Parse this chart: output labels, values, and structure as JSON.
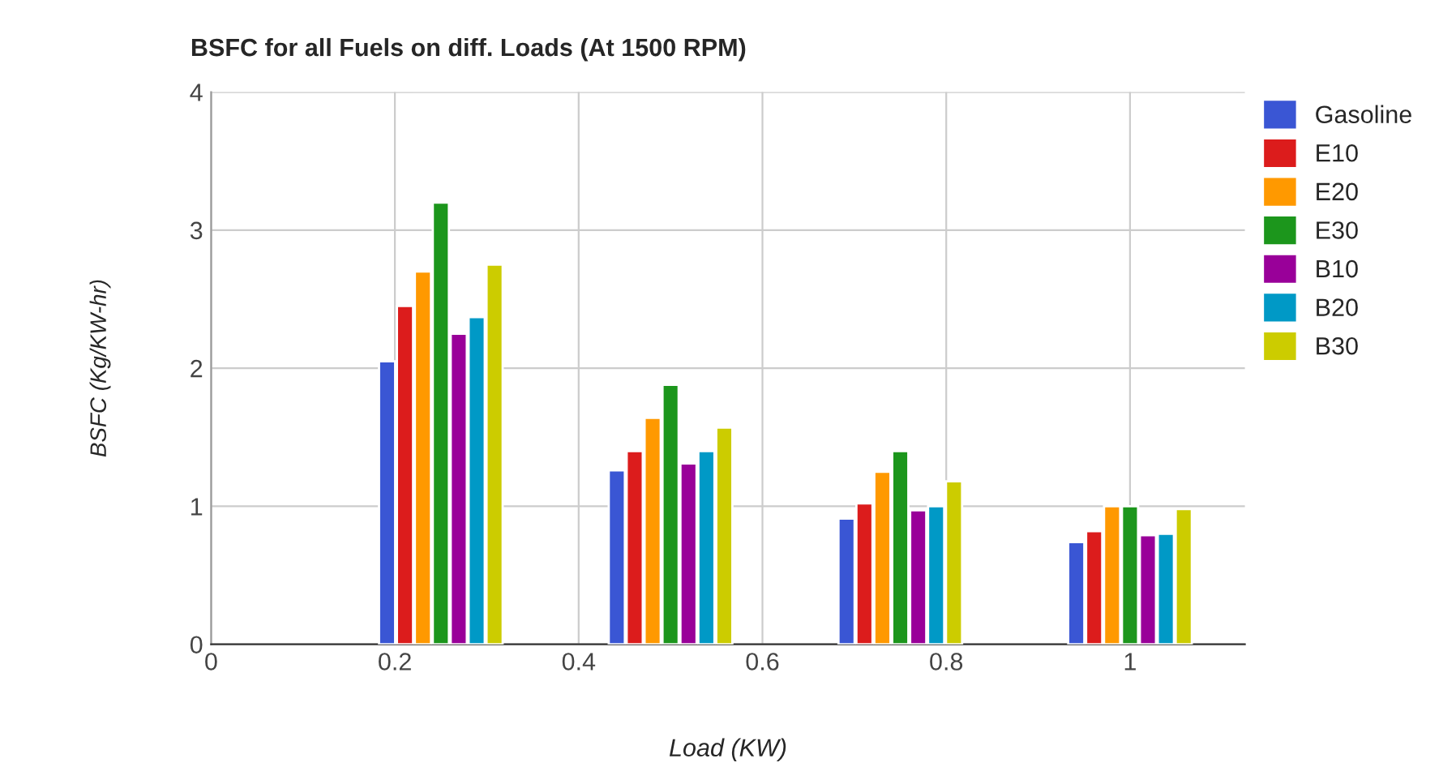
{
  "chart_data": {
    "type": "bar",
    "title": "BSFC for all Fuels on diff. Loads (At 1500 RPM)",
    "xlabel": "Load (KW)",
    "ylabel": "BSFC (Kg/KW-hr)",
    "x": [
      0.25,
      0.5,
      0.75,
      1.0
    ],
    "series": [
      {
        "name": "Gasoline",
        "color": "#3a56d4",
        "values": [
          2.05,
          1.26,
          0.91,
          0.74
        ]
      },
      {
        "name": "E10",
        "color": "#dc1c1c",
        "values": [
          2.45,
          1.4,
          1.02,
          0.82
        ]
      },
      {
        "name": "E20",
        "color": "#ff9900",
        "values": [
          2.7,
          1.64,
          1.25,
          1.0
        ]
      },
      {
        "name": "E30",
        "color": "#1c961c",
        "values": [
          3.2,
          1.88,
          1.4,
          1.0
        ]
      },
      {
        "name": "B10",
        "color": "#990099",
        "values": [
          2.25,
          1.31,
          0.97,
          0.79
        ]
      },
      {
        "name": "B20",
        "color": "#0099c6",
        "values": [
          2.37,
          1.4,
          1.0,
          0.8
        ]
      },
      {
        "name": "B30",
        "color": "#cccc00",
        "values": [
          2.75,
          1.57,
          1.18,
          0.98
        ]
      }
    ],
    "xlim": [
      0,
      1.125
    ],
    "xticks": [
      0,
      0.2,
      0.4,
      0.6,
      0.8,
      1
    ],
    "ylim": [
      0,
      4
    ],
    "yticks": [
      0,
      1,
      2,
      3,
      4
    ],
    "grid": true,
    "legend": "right"
  }
}
